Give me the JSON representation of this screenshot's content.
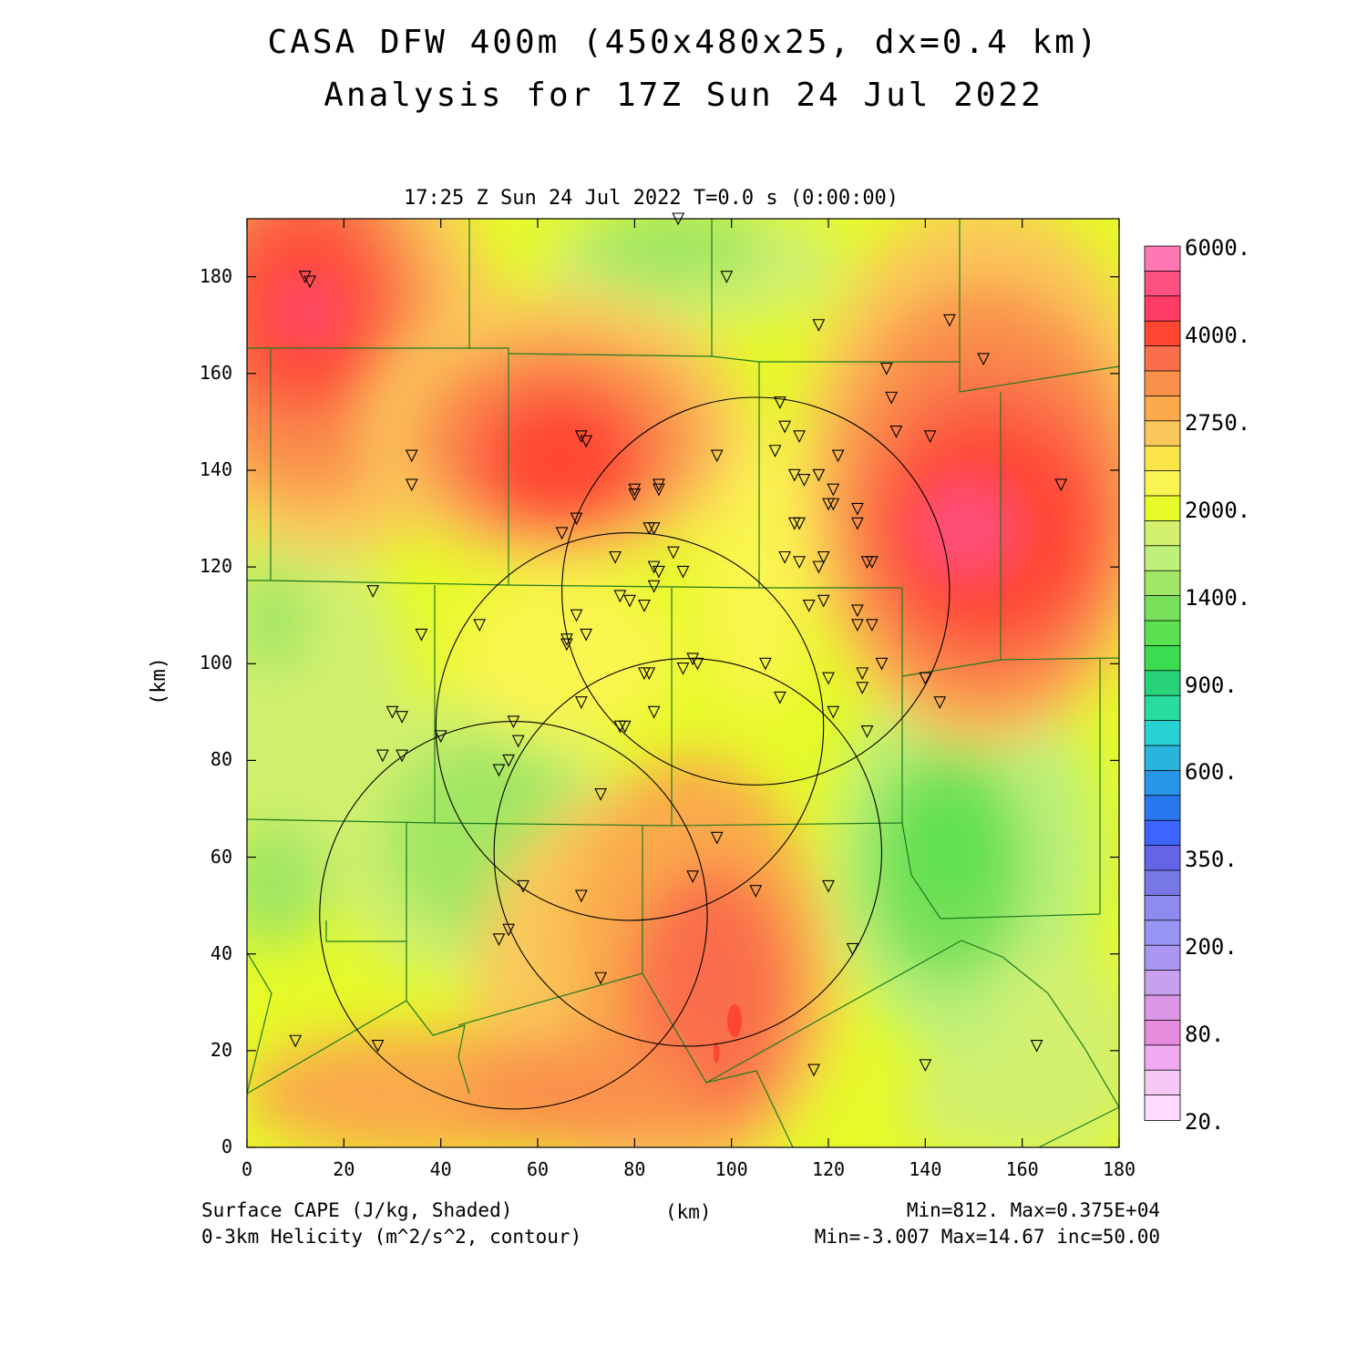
{
  "header": {
    "title_line1": "CASA DFW 400m (450x480x25, dx=0.4 km)",
    "title_line2": "Analysis for 17Z Sun 24 Jul 2022",
    "time_label": "17:25 Z Sun 24 Jul 2022   T=0.0 s (0:00:00)"
  },
  "axes": {
    "x_label": "(km)",
    "y_label": "(km)",
    "x_ticks": [
      "0",
      "20",
      "40",
      "60",
      "80",
      "100",
      "120",
      "140",
      "160",
      "180"
    ],
    "y_ticks": [
      "0",
      "20",
      "40",
      "60",
      "80",
      "100",
      "120",
      "140",
      "160",
      "180"
    ],
    "xlim": [
      0,
      180
    ],
    "ylim": [
      0,
      192
    ]
  },
  "colorbar": {
    "labels": [
      "6000.",
      "4000.",
      "2750.",
      "2000.",
      "1400.",
      "900.",
      "600.",
      "350.",
      "200.",
      "80.",
      "20."
    ],
    "colors": [
      "#ff78b4",
      "#ff5082",
      "#ff3c64",
      "#ff4632",
      "#fa6e4b",
      "#fa914b",
      "#faaa4b",
      "#fac85a",
      "#fae646",
      "#faf550",
      "#e6fa28",
      "#d2f06e",
      "#bef07a",
      "#a0e664",
      "#78e05a",
      "#5ae150",
      "#3cdc50",
      "#28d278",
      "#28dca0",
      "#28d2d2",
      "#28b4dc",
      "#2896e6",
      "#2878f0",
      "#3c64ff",
      "#6464e6",
      "#7878e6",
      "#8c8cf0",
      "#9696f5",
      "#aa96f0",
      "#c8a0f0",
      "#dc96e6",
      "#e68cdc",
      "#f0aaf0",
      "#f5c8f5",
      "#ffdcff"
    ]
  },
  "footer": {
    "left1": "Surface CAPE (J/kg, Shaded)",
    "left2": "0-3km Helicity (m^2/s^2, contour)",
    "center": "(km)",
    "right1": "Min=812. Max=0.375E+04",
    "right2": "Min=-3.007 Max=14.67 inc=50.00"
  },
  "map": {
    "field": "Surface CAPE",
    "cape_min": 812,
    "cape_max": 3750,
    "helicity_min": -3.007,
    "helicity_max": 14.67,
    "helicity_inc": 50.0,
    "radar_rings": [
      {
        "x": 105,
        "y": 115,
        "r": 40
      },
      {
        "x": 79,
        "y": 87,
        "r": 40
      },
      {
        "x": 91,
        "y": 61,
        "r": 40
      },
      {
        "x": 55,
        "y": 48,
        "r": 40
      }
    ],
    "stations": [
      [
        12,
        180
      ],
      [
        13,
        179
      ],
      [
        89,
        192
      ],
      [
        99,
        180
      ],
      [
        118,
        170
      ],
      [
        145,
        171
      ],
      [
        152,
        163
      ],
      [
        132,
        161
      ],
      [
        133,
        155
      ],
      [
        134,
        148
      ],
      [
        141,
        147
      ],
      [
        110,
        154
      ],
      [
        111,
        149
      ],
      [
        109,
        144
      ],
      [
        114,
        147
      ],
      [
        118,
        139
      ],
      [
        115,
        138
      ],
      [
        122,
        143
      ],
      [
        113,
        139
      ],
      [
        121,
        136
      ],
      [
        120,
        133
      ],
      [
        121,
        133
      ],
      [
        126,
        132
      ],
      [
        126,
        129
      ],
      [
        113,
        129
      ],
      [
        114,
        129
      ],
      [
        111,
        122
      ],
      [
        114,
        121
      ],
      [
        119,
        122
      ],
      [
        118,
        120
      ],
      [
        129,
        121
      ],
      [
        128,
        121
      ],
      [
        69,
        147
      ],
      [
        70,
        146
      ],
      [
        97,
        143
      ],
      [
        80,
        135
      ],
      [
        80,
        136
      ],
      [
        85,
        136
      ],
      [
        85,
        137
      ],
      [
        68,
        130
      ],
      [
        65,
        127
      ],
      [
        83,
        128
      ],
      [
        84,
        128
      ],
      [
        88,
        123
      ],
      [
        76,
        122
      ],
      [
        84,
        120
      ],
      [
        85,
        119
      ],
      [
        90,
        119
      ],
      [
        84,
        116
      ],
      [
        77,
        114
      ],
      [
        79,
        113
      ],
      [
        82,
        112
      ],
      [
        68,
        110
      ],
      [
        66,
        104
      ],
      [
        66,
        105
      ],
      [
        70,
        106
      ],
      [
        92,
        101
      ],
      [
        93,
        100
      ],
      [
        107,
        100
      ],
      [
        90,
        99
      ],
      [
        82,
        98
      ],
      [
        83,
        98
      ],
      [
        69,
        92
      ],
      [
        110,
        93
      ],
      [
        120,
        97
      ],
      [
        127,
        98
      ],
      [
        127,
        95
      ],
      [
        131,
        100
      ],
      [
        129,
        108
      ],
      [
        126,
        111
      ],
      [
        126,
        108
      ],
      [
        119,
        113
      ],
      [
        116,
        112
      ],
      [
        143,
        92
      ],
      [
        140,
        97
      ],
      [
        128,
        86
      ],
      [
        121,
        90
      ],
      [
        84,
        90
      ],
      [
        77,
        87
      ],
      [
        78,
        87
      ],
      [
        73,
        73
      ],
      [
        97,
        64
      ],
      [
        34,
        143
      ],
      [
        34,
        137
      ],
      [
        26,
        115
      ],
      [
        36,
        106
      ],
      [
        48,
        108
      ],
      [
        30,
        90
      ],
      [
        32,
        89
      ],
      [
        40,
        85
      ],
      [
        28,
        81
      ],
      [
        32,
        81
      ],
      [
        55,
        88
      ],
      [
        56,
        84
      ],
      [
        54,
        80
      ],
      [
        52,
        78
      ],
      [
        57,
        54
      ],
      [
        69,
        52
      ],
      [
        92,
        56
      ],
      [
        105,
        53
      ],
      [
        120,
        54
      ],
      [
        125,
        41
      ],
      [
        54,
        45
      ],
      [
        52,
        43
      ],
      [
        73,
        35
      ],
      [
        10,
        22
      ],
      [
        27,
        21
      ],
      [
        117,
        16
      ],
      [
        140,
        17
      ],
      [
        163,
        21
      ],
      [
        168,
        137
      ]
    ]
  }
}
